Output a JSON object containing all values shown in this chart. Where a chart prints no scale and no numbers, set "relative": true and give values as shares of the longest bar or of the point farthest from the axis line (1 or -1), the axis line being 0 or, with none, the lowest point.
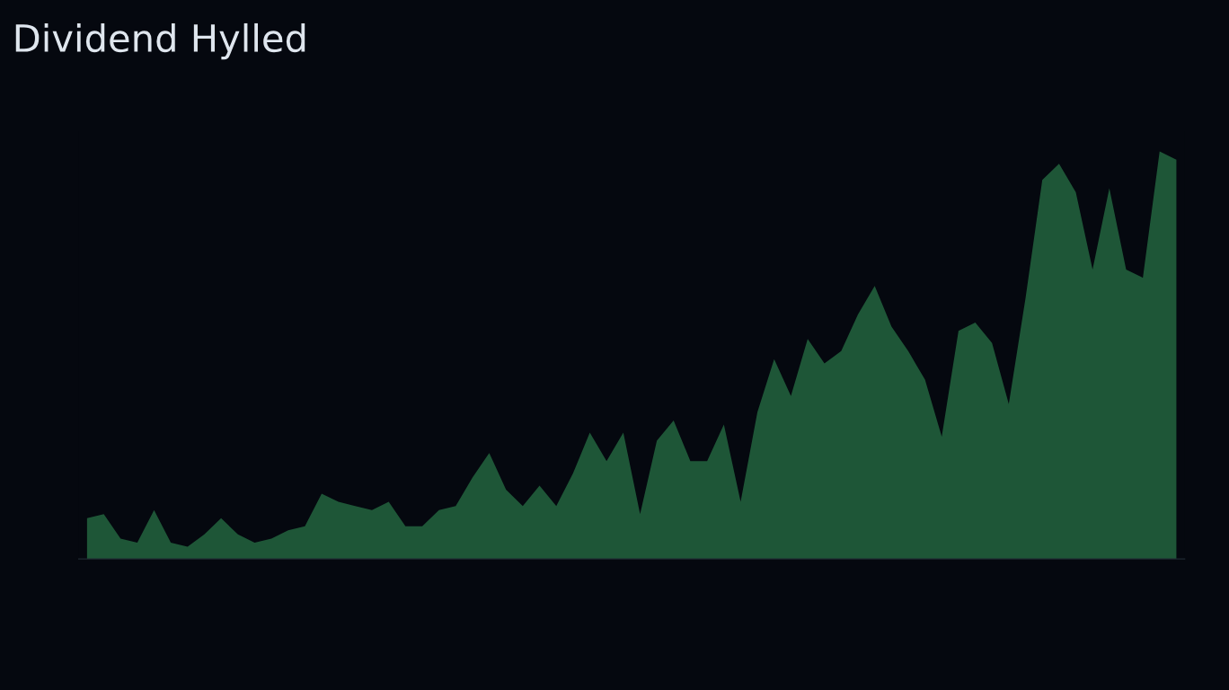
{
  "chart_data": {
    "type": "area",
    "title": "Dividend Hylled",
    "relative": true,
    "color": "#2f8a52",
    "categories": [
      null,
      null,
      null,
      null,
      null,
      null,
      null,
      null,
      null,
      null,
      null,
      null,
      null,
      null,
      null,
      null,
      null,
      null,
      null,
      null,
      null,
      null,
      null,
      null,
      null,
      null,
      null,
      null,
      null,
      null,
      null,
      null,
      null,
      null,
      null,
      null,
      null,
      null,
      null,
      null,
      null,
      null,
      null,
      null,
      null,
      null,
      null,
      null,
      null,
      null,
      null,
      null,
      null,
      null,
      null,
      null,
      null,
      null,
      null,
      null,
      null,
      null,
      null,
      null,
      null,
      null
    ],
    "values": [
      0.1,
      0.11,
      0.05,
      0.04,
      0.12,
      0.04,
      0.03,
      0.06,
      0.1,
      0.06,
      0.04,
      0.05,
      0.07,
      0.08,
      0.16,
      0.14,
      0.13,
      0.12,
      0.14,
      0.08,
      0.08,
      0.12,
      0.13,
      0.2,
      0.26,
      0.17,
      0.13,
      0.18,
      0.13,
      0.21,
      0.31,
      0.24,
      0.31,
      0.11,
      0.29,
      0.34,
      0.24,
      0.24,
      0.33,
      0.14,
      0.36,
      0.49,
      0.4,
      0.54,
      0.48,
      0.51,
      0.6,
      0.67,
      0.57,
      0.51,
      0.44,
      0.3,
      0.56,
      0.58,
      0.53,
      0.38,
      0.64,
      0.93,
      0.97,
      0.9,
      0.71,
      0.91,
      0.71,
      0.69,
      1,
      0.98
    ]
  }
}
